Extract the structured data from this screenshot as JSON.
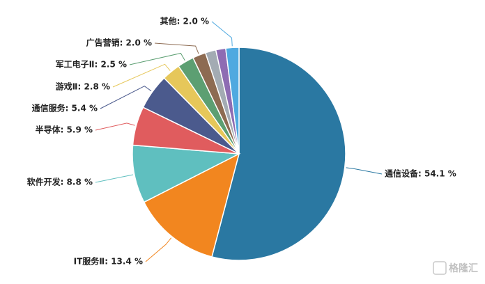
{
  "chart_data": {
    "type": "pie",
    "labels": [
      "通信设备: 54.1 %",
      "IT服务Ⅱ: 13.4 %",
      "软件开发: 8.8 %",
      "半导体: 5.9 %",
      "通信服务: 5.4 %",
      "游戏Ⅱ: 2.8 %",
      "军工电子Ⅱ: 2.5 %",
      "广告营销: 2.0 %",
      null,
      null,
      "其他: 2.0 %"
    ],
    "values": [
      54.1,
      13.4,
      8.8,
      5.9,
      5.4,
      2.8,
      2.5,
      2.0,
      1.6,
      1.5,
      2.0
    ],
    "colors": [
      "#2a78a2",
      "#f2861f",
      "#5fbfbf",
      "#e05c5e",
      "#4b5a8d",
      "#e6c75a",
      "#5c9f72",
      "#8d6b52",
      "#a3abb3",
      "#8e6cb3",
      "#4fa9e0"
    ],
    "watermark": "格隆汇"
  }
}
